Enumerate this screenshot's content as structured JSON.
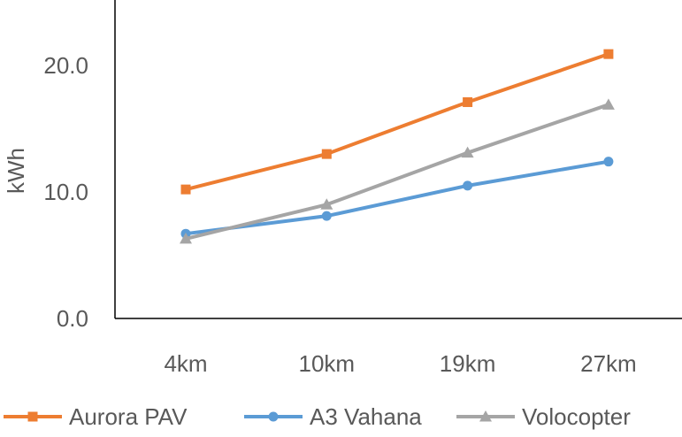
{
  "chart_data": {
    "type": "line",
    "title": "",
    "xlabel": "",
    "ylabel": "kWh",
    "categories": [
      "4km",
      "10km",
      "19km",
      "27km"
    ],
    "ylim": [
      0,
      25
    ],
    "yticks": [
      0,
      10,
      20
    ],
    "ytick_labels": [
      "0.0",
      "10.0",
      "20.0"
    ],
    "grid": false,
    "legend_position": "bottom",
    "series": [
      {
        "name": "Aurora PAV",
        "values": [
          10.2,
          13.0,
          17.1,
          20.9
        ],
        "color": "#ED7D31",
        "marker": "square"
      },
      {
        "name": "A3 Vahana",
        "values": [
          6.7,
          8.1,
          10.5,
          12.4
        ],
        "color": "#5B9BD5",
        "marker": "circle"
      },
      {
        "name": "Volocopter",
        "values": [
          6.3,
          9.0,
          13.1,
          16.9
        ],
        "color": "#A5A5A5",
        "marker": "triangle"
      }
    ]
  }
}
